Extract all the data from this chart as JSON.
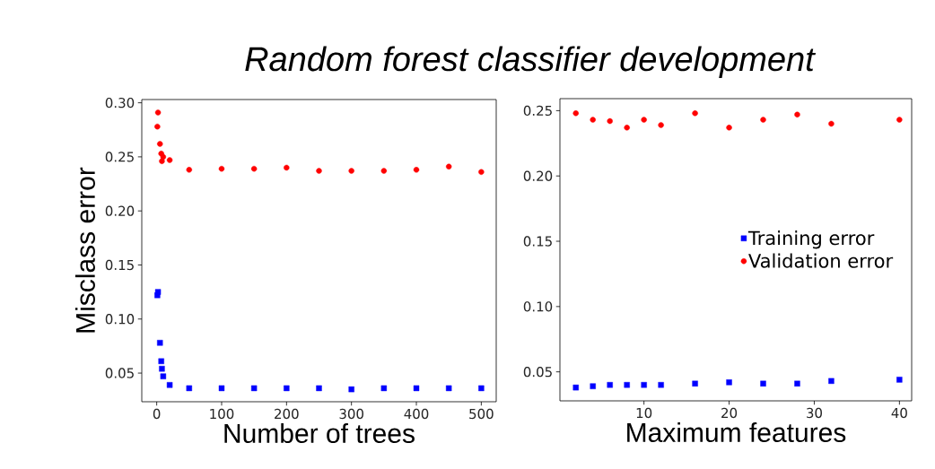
{
  "chart_data": [
    {
      "type": "scatter",
      "title": "Random forest classifier development",
      "xlabel": "Number of trees",
      "ylabel": "Misclass error",
      "xlim": [
        -23,
        523
      ],
      "ylim": [
        0.0235,
        0.303
      ],
      "xticks": [
        0,
        100,
        200,
        300,
        400,
        500
      ],
      "yticks": [
        0.05,
        {
          "value": 0.1,
          "label": "0.10"
        },
        0.15,
        {
          "value": 0.2,
          "label": "0.20"
        },
        0.25,
        {
          "value": 0.3,
          "label": "0.30"
        }
      ],
      "grid": false,
      "legend": false,
      "series": [
        {
          "color": "#0000ff",
          "marker": "square",
          "x": [
            1,
            2,
            5,
            7,
            8,
            10,
            20,
            50,
            100,
            150,
            200,
            250,
            300,
            350,
            400,
            450,
            500
          ],
          "values": [
            0.122,
            0.125,
            0.078,
            0.061,
            0.054,
            0.047,
            0.039,
            0.036,
            0.036,
            0.036,
            0.036,
            0.036,
            0.035,
            0.036,
            0.036,
            0.036,
            0.036
          ]
        },
        {
          "color": "#ff0000",
          "marker": "circle",
          "x": [
            1,
            2,
            5,
            7,
            8,
            10,
            20,
            50,
            100,
            150,
            200,
            250,
            300,
            350,
            400,
            450,
            500
          ],
          "values": [
            0.278,
            0.291,
            0.262,
            0.253,
            0.246,
            0.25,
            0.247,
            0.238,
            0.239,
            0.239,
            0.24,
            0.237,
            0.237,
            0.237,
            0.238,
            0.241,
            0.236
          ]
        }
      ]
    },
    {
      "type": "scatter",
      "xlabel": "Maximum features",
      "xlim": [
        0.13,
        41.44
      ],
      "ylim": [
        0.0278,
        0.2592
      ],
      "xticks": [
        10,
        20,
        30,
        40
      ],
      "yticks": [
        0.05,
        {
          "value": 0.1,
          "label": "0.10"
        },
        0.15,
        {
          "value": 0.2,
          "label": "0.20"
        },
        0.25
      ],
      "grid": false,
      "legend": "right",
      "series": [
        {
          "name": "Training error",
          "color": "#0000ff",
          "marker": "square",
          "x": [
            2,
            4,
            6,
            8,
            10,
            12,
            16,
            20,
            24,
            28,
            32,
            40
          ],
          "values": [
            0.038,
            0.039,
            0.04,
            0.04,
            0.04,
            0.04,
            0.041,
            0.042,
            0.041,
            0.041,
            0.043,
            0.044
          ]
        },
        {
          "name": "Validation error",
          "color": "#ff0000",
          "marker": "circle",
          "x": [
            2,
            4,
            6,
            8,
            10,
            12,
            16,
            20,
            24,
            28,
            32,
            40
          ],
          "values": [
            0.248,
            0.243,
            0.242,
            0.237,
            0.243,
            0.239,
            0.248,
            0.237,
            0.243,
            0.247,
            0.24,
            0.243
          ]
        }
      ]
    }
  ]
}
